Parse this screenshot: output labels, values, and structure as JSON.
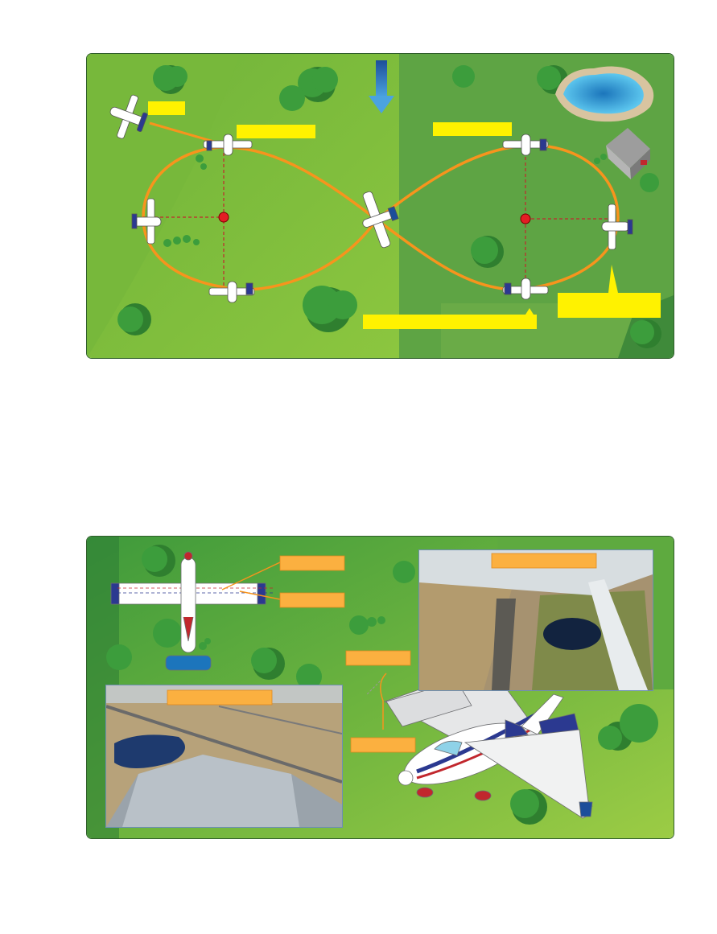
{
  "colors": {
    "grass_light": "#8cc63f",
    "grass_dark": "#5a9b3c",
    "path_orange": "#f7941d",
    "pivot_red": "#e31e24",
    "callout_yellow": "#fff200",
    "label_orange": "#fbb040",
    "tree_green": "#3c9d3c",
    "water_blue": "#29abe2",
    "wind_arrow_blue": "#1c75bc"
  },
  "top_diagram": {
    "callouts": [
      "",
      "",
      "",
      "",
      ""
    ],
    "icons": [
      "wind-arrow-icon",
      "airplane-icon",
      "pivot-point-icon",
      "tree-icon",
      "pond-icon",
      "barn-icon"
    ]
  },
  "bottom_diagram": {
    "callouts": [
      "",
      "",
      "",
      "",
      ""
    ],
    "icons": [
      "airplane-top-view-icon",
      "airplane-perspective-icon",
      "tree-icon"
    ]
  }
}
